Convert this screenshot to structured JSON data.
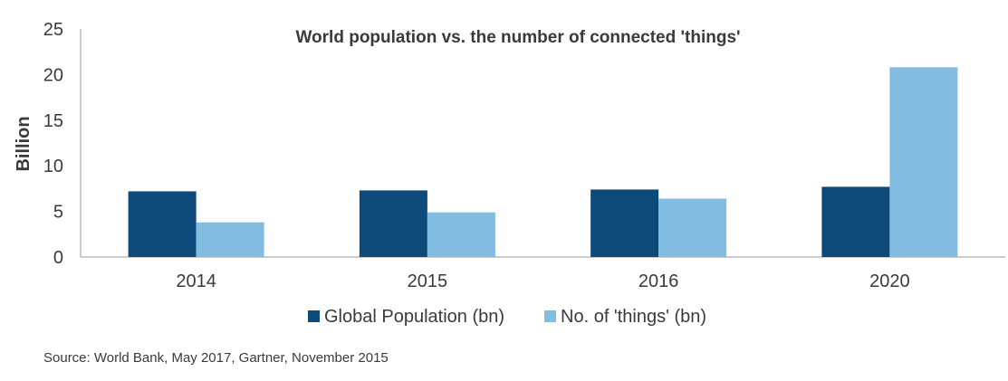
{
  "chart_data": {
    "type": "bar",
    "title": "World population vs. the number of connected 'things'",
    "xlabel": "",
    "ylabel": "Billion",
    "ylim": [
      0,
      25
    ],
    "yticks": [
      0,
      5,
      10,
      15,
      20,
      25
    ],
    "categories": [
      "2014",
      "2015",
      "2016",
      "2020"
    ],
    "series": [
      {
        "name": "Global Population (bn)",
        "color": "#0d4a7a",
        "values": [
          7.2,
          7.3,
          7.4,
          7.7
        ]
      },
      {
        "name": "No. of 'things' (bn)",
        "color": "#82bde1",
        "values": [
          3.8,
          4.9,
          6.4,
          20.8
        ]
      }
    ],
    "legend_position": "bottom",
    "grid": false
  },
  "source": "Source: World Bank, May 2017, Gartner, November 2015"
}
